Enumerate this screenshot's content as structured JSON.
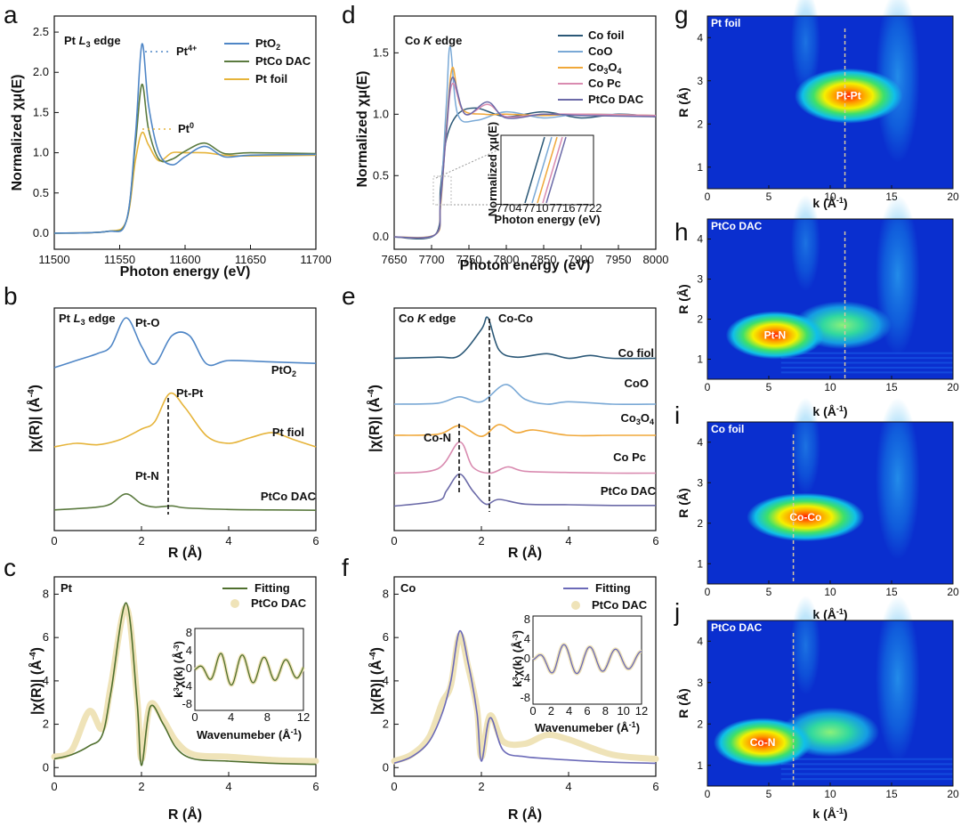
{
  "colors": {
    "pto2": "#4f86c6",
    "ptco": "#5b7a3f",
    "ptfoil": "#e6b43a",
    "cofoil": "#2b5877",
    "coo": "#7aa9d6",
    "co3o4": "#f0a83a",
    "copc": "#d98bb0",
    "ptcodac_co": "#6b6aa8",
    "fit_pt": "#4f6f2e",
    "fit_co": "#6b6ab8",
    "data_dots": "#efe3b8",
    "wt_bg": "#0a2fcf"
  },
  "panels": {
    "a": {
      "letter": "a",
      "title": "Pt L3 edge",
      "xlabel": "Photon energy (eV)",
      "ylabel": "Normalized χμ(E)",
      "xticks": [
        "11500",
        "11550",
        "11600",
        "11650",
        "11700"
      ],
      "yticks": [
        "0.0",
        "0.5",
        "1.0",
        "1.5",
        "2.0",
        "2.5"
      ],
      "legend": [
        "PtO2",
        "PtCo DAC",
        "Pt foil"
      ],
      "ann_pt4": "Pt4+",
      "ann_pt0": "Pt0"
    },
    "b": {
      "letter": "b",
      "title": "Pt L3 edge",
      "xlabel": "R (Å)",
      "ylabel": "|χ(R)| (Å-4)",
      "xticks": [
        "0",
        "2",
        "4",
        "6"
      ],
      "labels": [
        "PtO2",
        "Pt fiol",
        "PtCo DAC"
      ],
      "ann": [
        "Pt-O",
        "Pt-Pt",
        "Pt-N"
      ]
    },
    "c": {
      "letter": "c",
      "title": "Pt",
      "xlabel": "R (Å)",
      "ylabel": "|χ(R)| (Å-4)",
      "xticks": [
        "0",
        "2",
        "4",
        "6"
      ],
      "yticks": [
        "0",
        "2",
        "4",
        "6",
        "8"
      ],
      "legend": [
        "Fitting",
        "PtCo DAC"
      ],
      "inset": {
        "xlabel": "Wavenumeber (Å-1)",
        "ylabel": "k3χ(k) (Å-3)",
        "xticks": [
          "0",
          "4",
          "8",
          "12"
        ],
        "yticks": [
          "8",
          "4",
          "0",
          "-4",
          "-8"
        ]
      }
    },
    "d": {
      "letter": "d",
      "title": "Co K edge",
      "xlabel": "Photon energy (eV)",
      "ylabel": "Normalized χμ(E)",
      "xticks": [
        "7650",
        "7700",
        "7750",
        "7800",
        "7850",
        "7900",
        "7950",
        "8000"
      ],
      "yticks": [
        "0.0",
        "0.5",
        "1.0",
        "1.5"
      ],
      "legend": [
        "Co foil",
        "CoO",
        "Co3O4",
        "Co Pc",
        "PtCo DAC"
      ],
      "inset": {
        "xlabel": "Photon energy (eV)",
        "ylabel": "Normalized χμ(E)",
        "xticks": [
          "7704",
          "7710",
          "7716",
          "7722"
        ]
      }
    },
    "e": {
      "letter": "e",
      "title": "Co K edge",
      "xlabel": "R (Å)",
      "ylabel": "|χ(R)| (Å-4)",
      "xticks": [
        "0",
        "2",
        "4",
        "6"
      ],
      "labels": [
        "Co fiol",
        "CoO",
        "Co3O4",
        "Co Pc",
        "PtCo DAC"
      ],
      "ann": [
        "Co-Co",
        "Co-N"
      ]
    },
    "f": {
      "letter": "f",
      "title": "Co",
      "xlabel": "R (Å)",
      "ylabel": "|χ(R)| (Å-4)",
      "xticks": [
        "0",
        "2",
        "4",
        "6"
      ],
      "yticks": [
        "0",
        "2",
        "4",
        "6",
        "8"
      ],
      "legend": [
        "Fitting",
        "PtCo DAC"
      ],
      "inset": {
        "xlabel": "Wavenumeber (Å-1)",
        "ylabel": "k3χ(k) (Å-3)",
        "xticks": [
          "0",
          "2",
          "4",
          "6",
          "8",
          "10",
          "12"
        ],
        "yticks": [
          "8",
          "4",
          "0",
          "-4",
          "-8"
        ]
      }
    },
    "g": {
      "letter": "g",
      "title": "Pt foil",
      "peak": "Pt-Pt"
    },
    "h": {
      "letter": "h",
      "title": "PtCo DAC",
      "peak": "Pt-N"
    },
    "i": {
      "letter": "i",
      "title": "Co foil",
      "peak": "Co-Co"
    },
    "j": {
      "letter": "j",
      "title": "PtCo DAC",
      "peak": "Co-N"
    },
    "wt": {
      "xlabel": "k (Å-1)",
      "ylabel": "R (Å)",
      "xticks": [
        "0",
        "5",
        "10",
        "15",
        "20"
      ],
      "yticks": [
        "1",
        "2",
        "3",
        "4"
      ]
    }
  },
  "chart_data": [
    {
      "type": "line",
      "title": "Pt L3 edge",
      "xlabel": "Photon energy (eV)",
      "ylabel": "Normalized χμ(E)",
      "xlim": [
        11500,
        11700
      ],
      "ylim": [
        -0.2,
        2.7
      ],
      "series": [
        {
          "name": "PtO2",
          "x": [
            11500,
            11540,
            11555,
            11562,
            11567,
            11572,
            11580,
            11590,
            11600,
            11615,
            11630,
            11650,
            11700
          ],
          "y": [
            0,
            0.02,
            0.15,
            1.2,
            2.35,
            1.6,
            1.0,
            0.85,
            0.95,
            1.08,
            0.95,
            0.97,
            0.98
          ]
        },
        {
          "name": "PtCo DAC",
          "x": [
            11500,
            11540,
            11555,
            11562,
            11567,
            11572,
            11580,
            11590,
            11600,
            11615,
            11630,
            11650,
            11700
          ],
          "y": [
            0,
            0.02,
            0.15,
            1.1,
            1.85,
            1.3,
            0.92,
            0.92,
            1.02,
            1.12,
            0.99,
            1.0,
            0.99
          ]
        },
        {
          "name": "Pt foil",
          "x": [
            11500,
            11540,
            11555,
            11562,
            11567,
            11572,
            11580,
            11590,
            11600,
            11615,
            11630,
            11650,
            11700
          ],
          "y": [
            0,
            0.02,
            0.15,
            0.9,
            1.25,
            1.1,
            0.9,
            1.0,
            1.0,
            1.0,
            0.97,
            0.96,
            0.97
          ]
        }
      ]
    },
    {
      "type": "line",
      "title": "Co K edge",
      "xlabel": "Photon energy (eV)",
      "ylabel": "Normalized χμ(E)",
      "xlim": [
        7650,
        8000
      ],
      "ylim": [
        -0.1,
        1.8
      ],
      "series": [
        {
          "name": "Co foil",
          "x": [
            7650,
            7705,
            7712,
            7720,
            7735,
            7760,
            7800,
            7850,
            7900,
            7950,
            8000
          ],
          "y": [
            0,
            0.02,
            0.4,
            0.8,
            1.0,
            1.05,
            0.98,
            1.02,
            0.97,
            1.0,
            0.98
          ]
        },
        {
          "name": "CoO",
          "x": [
            7650,
            7705,
            7712,
            7720,
            7725,
            7735,
            7760,
            7800,
            7850,
            7900,
            8000
          ],
          "y": [
            0,
            0.02,
            0.3,
            1.1,
            1.55,
            1.0,
            0.95,
            1.02,
            0.97,
            1.0,
            0.99
          ]
        },
        {
          "name": "Co3O4",
          "x": [
            7650,
            7705,
            7712,
            7720,
            7728,
            7740,
            7770,
            7800,
            7850,
            7900,
            8000
          ],
          "y": [
            0,
            0.02,
            0.25,
            0.9,
            1.38,
            1.05,
            1.0,
            1.0,
            0.99,
            1.0,
            0.99
          ]
        },
        {
          "name": "Co Pc",
          "x": [
            7650,
            7705,
            7712,
            7720,
            7728,
            7745,
            7775,
            7800,
            7850,
            7900,
            8000
          ],
          "y": [
            0,
            0.02,
            0.3,
            0.85,
            1.25,
            1.0,
            1.08,
            0.98,
            1.0,
            1.0,
            0.99
          ]
        },
        {
          "name": "PtCo DAC",
          "x": [
            7650,
            7705,
            7712,
            7720,
            7728,
            7745,
            7775,
            7800,
            7850,
            7900,
            8000
          ],
          "y": [
            0,
            0.02,
            0.28,
            0.88,
            1.3,
            1.0,
            1.1,
            0.97,
            1.0,
            0.99,
            0.98
          ]
        }
      ]
    },
    {
      "type": "line",
      "title": "Pt L3 edge",
      "xlabel": "R (Å)",
      "ylabel": "|χ(R)| (Å-4)",
      "xlim": [
        0,
        6
      ],
      "series": [
        {
          "name": "PtO2",
          "x": [
            0,
            0.5,
            1.0,
            1.3,
            1.65,
            2.0,
            2.3,
            2.7,
            3.1,
            3.5,
            4.0,
            5.0,
            6.0
          ],
          "y": [
            0.3,
            0.4,
            0.5,
            0.6,
            1.0,
            0.6,
            0.35,
            0.75,
            0.75,
            0.35,
            0.4,
            0.38,
            0.36
          ]
        },
        {
          "name": "Pt fiol",
          "x": [
            0,
            0.5,
            1.0,
            1.5,
            2.0,
            2.3,
            2.65,
            3.0,
            3.5,
            4.0,
            4.5,
            5.0,
            5.5,
            6.0
          ],
          "y": [
            0.25,
            0.3,
            0.28,
            0.35,
            0.5,
            0.6,
            1.0,
            0.8,
            0.4,
            0.3,
            0.38,
            0.45,
            0.35,
            0.25
          ]
        },
        {
          "name": "PtCo DAC",
          "x": [
            0,
            0.5,
            1.0,
            1.3,
            1.65,
            2.0,
            2.3,
            2.7,
            3.0,
            4.0,
            5.0,
            6.0
          ],
          "y": [
            0.05,
            0.08,
            0.12,
            0.2,
            0.45,
            0.2,
            0.12,
            0.15,
            0.1,
            0.06,
            0.05,
            0.04
          ]
        }
      ]
    },
    {
      "type": "line",
      "title": "Co K edge",
      "xlabel": "R (Å)",
      "ylabel": "|χ(R)| (Å-4)",
      "xlim": [
        0,
        6
      ],
      "series": [
        {
          "name": "Co fiol",
          "x": [
            0,
            1.0,
            1.5,
            2.0,
            2.15,
            2.4,
            2.8,
            3.5,
            4.0,
            4.5,
            5.0,
            6.0
          ],
          "y": [
            0.3,
            0.32,
            0.35,
            0.8,
            1.0,
            0.45,
            0.32,
            0.38,
            0.3,
            0.35,
            0.3,
            0.3
          ]
        },
        {
          "name": "CoO",
          "x": [
            0,
            1.0,
            1.5,
            2.0,
            2.55,
            3.0,
            3.5,
            4.0,
            5.0,
            6.0
          ],
          "y": [
            0.2,
            0.22,
            0.35,
            0.25,
            0.6,
            0.3,
            0.2,
            0.25,
            0.2,
            0.2
          ]
        },
        {
          "name": "Co3O4",
          "x": [
            0,
            1.0,
            1.5,
            2.0,
            2.4,
            2.8,
            3.2,
            4.0,
            5.0,
            6.0
          ],
          "y": [
            0.1,
            0.12,
            0.28,
            0.08,
            0.3,
            0.15,
            0.2,
            0.1,
            0.1,
            0.1
          ]
        },
        {
          "name": "Co Pc",
          "x": [
            0,
            1.0,
            1.5,
            1.8,
            2.2,
            2.6,
            3.0,
            4.0,
            5.0,
            6.0
          ],
          "y": [
            0.05,
            0.12,
            0.55,
            0.15,
            0.05,
            0.15,
            0.08,
            0.06,
            0.05,
            0.05
          ]
        },
        {
          "name": "PtCo DAC",
          "x": [
            0,
            1.0,
            1.2,
            1.5,
            1.8,
            2.1,
            2.4,
            3.0,
            4.0,
            5.0,
            6.0
          ],
          "y": [
            0.02,
            0.1,
            0.25,
            0.5,
            0.25,
            0.05,
            0.12,
            0.05,
            0.04,
            0.03,
            0.03
          ]
        }
      ]
    },
    {
      "type": "line",
      "title": "Pt",
      "xlabel": "R (Å)",
      "ylabel": "|χ(R)| (Å-4)",
      "xlim": [
        0,
        6
      ],
      "ylim": [
        -0.4,
        8.8
      ],
      "series": [
        {
          "name": "Fitting",
          "x": [
            0,
            0.4,
            0.8,
            1.1,
            1.3,
            1.65,
            1.9,
            2.0,
            2.2,
            2.5,
            2.8,
            3.2,
            4.0,
            5.0,
            6.0
          ],
          "y": [
            0.4,
            0.6,
            1.0,
            1.5,
            3.5,
            7.6,
            3.0,
            0.1,
            2.8,
            2.0,
            0.9,
            0.4,
            0.3,
            0.2,
            0.15
          ]
        },
        {
          "name": "PtCo DAC",
          "x": [
            0,
            0.4,
            0.8,
            1.1,
            1.3,
            1.65,
            1.9,
            2.0,
            2.2,
            2.5,
            2.8,
            3.2,
            4.0,
            5.0,
            6.0
          ],
          "y": [
            0.5,
            0.8,
            2.6,
            1.8,
            3.8,
            7.4,
            3.2,
            0.4,
            2.9,
            2.2,
            1.2,
            0.6,
            0.5,
            0.35,
            0.3
          ]
        }
      ]
    },
    {
      "type": "line",
      "title": "Co",
      "xlabel": "R (Å)",
      "ylabel": "|χ(R)| (Å-4)",
      "xlim": [
        0,
        6
      ],
      "ylim": [
        -0.4,
        8.8
      ],
      "series": [
        {
          "name": "Fitting",
          "x": [
            0,
            0.4,
            0.8,
            1.1,
            1.3,
            1.5,
            1.7,
            1.9,
            2.0,
            2.2,
            2.5,
            3.0,
            4.0,
            5.0,
            6.0
          ],
          "y": [
            0.2,
            0.5,
            1.2,
            2.5,
            4.0,
            6.3,
            4.8,
            2.5,
            0.3,
            2.3,
            0.8,
            0.5,
            0.35,
            0.25,
            0.2
          ]
        },
        {
          "name": "PtCo DAC",
          "x": [
            0,
            0.4,
            0.8,
            1.1,
            1.3,
            1.5,
            1.7,
            1.9,
            2.0,
            2.2,
            2.5,
            3.0,
            3.5,
            4.0,
            5.0,
            6.0
          ],
          "y": [
            0.3,
            0.6,
            1.4,
            3.0,
            3.8,
            6.1,
            4.6,
            2.7,
            0.5,
            2.4,
            1.2,
            1.1,
            1.5,
            1.3,
            0.6,
            0.4
          ]
        }
      ]
    },
    {
      "type": "heatmap",
      "title": "Pt foil",
      "xlabel": "k (Å-1)",
      "ylabel": "R (Å)",
      "xlim": [
        0,
        20
      ],
      "ylim": [
        0.5,
        4.5
      ],
      "peaks": [
        {
          "label": "Pt-Pt",
          "k": 11.5,
          "R": 2.65
        }
      ],
      "dashed_k": 11.2
    },
    {
      "type": "heatmap",
      "title": "PtCo DAC",
      "xlabel": "k (Å-1)",
      "ylabel": "R (Å)",
      "xlim": [
        0,
        20
      ],
      "ylim": [
        0.5,
        4.5
      ],
      "peaks": [
        {
          "label": "Pt-N",
          "k": 5.5,
          "R": 1.6
        }
      ],
      "dashed_k": 11.2
    },
    {
      "type": "heatmap",
      "title": "Co foil",
      "xlabel": "k (Å-1)",
      "ylabel": "R (Å)",
      "xlim": [
        0,
        20
      ],
      "ylim": [
        0.5,
        4.5
      ],
      "peaks": [
        {
          "label": "Co-Co",
          "k": 8.0,
          "R": 2.15
        }
      ],
      "dashed_k": 7.0
    },
    {
      "type": "heatmap",
      "title": "PtCo DAC",
      "xlabel": "k (Å-1)",
      "ylabel": "R (Å)",
      "xlim": [
        0,
        20
      ],
      "ylim": [
        0.5,
        4.5
      ],
      "peaks": [
        {
          "label": "Co-N",
          "k": 4.5,
          "R": 1.55
        }
      ],
      "dashed_k": 7.0
    }
  ]
}
